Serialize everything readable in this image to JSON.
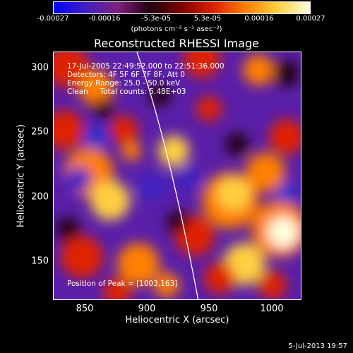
{
  "colorbar": {
    "ticks": [
      "-0.00027",
      "-0.00016",
      "-5.3e-05",
      "5.3e-05",
      "0.00016",
      "0.00027"
    ],
    "units": "(photons cm⁻² s⁻¹ asec⁻²)",
    "colors": [
      "#0000ff",
      "#4020c0",
      "#802080",
      "#200010",
      "#800000",
      "#e02000",
      "#ff8000",
      "#ffd040",
      "#ffffe0"
    ]
  },
  "title": "Reconstructed RHESSI Image",
  "info": {
    "time": "17-Jul-2005 22:49:52.000 to 22:51:36.000",
    "detectors": "Detectors: 4F 5F 6F 7F 8F, Att 0",
    "energy": "Energy Range: 25.0 - 50.0 keV",
    "clean": "Clean     Total counts: 5.48E+03"
  },
  "peak": "Position of Peak = [1003,163]",
  "axes": {
    "xlabel": "Heliocentric X (arcsec)",
    "ylabel": "Heliocentric Y (arcsec)",
    "xticks": [
      "850",
      "900",
      "950",
      "1000"
    ],
    "yticks": [
      "300",
      "250",
      "200",
      "150"
    ]
  },
  "date": "5-Jul-2013 19:57"
}
